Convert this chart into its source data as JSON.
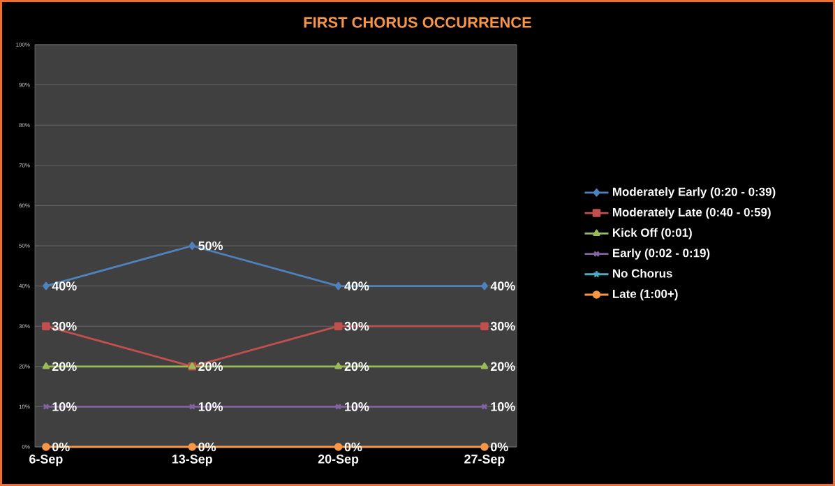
{
  "chart_data": {
    "type": "line",
    "title": "FIRST CHORUS OCCURRENCE",
    "categories": [
      "6-Sep",
      "13-Sep",
      "20-Sep",
      "27-Sep"
    ],
    "series": [
      {
        "name": "Moderately Early (0:20 - 0:39)",
        "color": "#4f81bd",
        "marker": "diamond",
        "values": [
          40,
          50,
          40,
          40
        ],
        "value_labels": [
          "40%",
          "50%",
          "40%",
          "40%"
        ]
      },
      {
        "name": "Moderately Late (0:40 - 0:59)",
        "color": "#c0504d",
        "marker": "square",
        "values": [
          30,
          20,
          30,
          30
        ],
        "value_labels": [
          "30%",
          null,
          "30%",
          "30%"
        ]
      },
      {
        "name": "Kick Off (0:01)",
        "color": "#9bbb59",
        "marker": "triangle",
        "values": [
          20,
          20,
          20,
          20
        ],
        "value_labels": [
          "20%",
          "20%",
          "20%",
          "20%"
        ]
      },
      {
        "name": "Early (0:02 - 0:19)",
        "color": "#8064a2",
        "marker": "cross",
        "values": [
          10,
          10,
          10,
          10
        ],
        "value_labels": [
          "10%",
          "10%",
          "10%",
          "10%"
        ]
      },
      {
        "name": "No Chorus",
        "color": "#4bacc6",
        "marker": "star",
        "values": [
          null,
          null,
          null,
          null
        ]
      },
      {
        "name": "Late (1:00+)",
        "color": "#f79646",
        "marker": "circle",
        "values": [
          0,
          0,
          0,
          0
        ],
        "value_labels": [
          "0%",
          "0%",
          "0%",
          "0%"
        ]
      }
    ],
    "ylim": [
      0,
      100
    ],
    "yticks": [
      {
        "value": 0,
        "label": "0%"
      },
      {
        "value": 10,
        "label": "10%"
      },
      {
        "value": 20,
        "label": "20%"
      },
      {
        "value": 30,
        "label": "30%"
      },
      {
        "value": 40,
        "label": "40%"
      },
      {
        "value": 50,
        "label": "50%"
      },
      {
        "value": 60,
        "label": "60%"
      },
      {
        "value": 70,
        "label": "70%"
      },
      {
        "value": 80,
        "label": "80%"
      },
      {
        "value": 90,
        "label": "90%"
      },
      {
        "value": 100,
        "label": "100%"
      }
    ],
    "grid": "y",
    "legend": "right",
    "line_style": "solid"
  }
}
